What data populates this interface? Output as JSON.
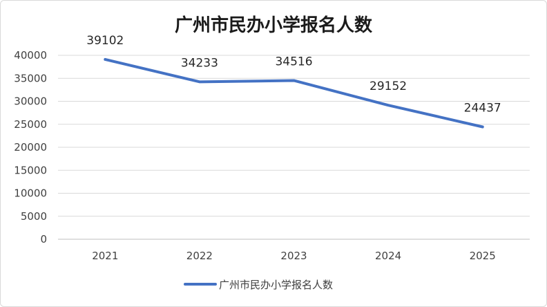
{
  "chart_data": {
    "type": "line",
    "title": "广州市民办小学报名人数",
    "categories": [
      "2021",
      "2022",
      "2023",
      "2024",
      "2025"
    ],
    "series": [
      {
        "name": "广州市民办小学报名人数",
        "values": [
          39102,
          34233,
          34516,
          29152,
          24437
        ],
        "color": "#4472C4"
      }
    ],
    "data_labels": [
      "39102",
      "34233",
      "34516",
      "29152",
      "24437"
    ],
    "y_ticks": [
      "0",
      "5000",
      "10000",
      "15000",
      "20000",
      "25000",
      "30000",
      "35000",
      "40000"
    ],
    "ylim": [
      0,
      40000
    ],
    "grid": true,
    "legend_position": "bottom"
  }
}
